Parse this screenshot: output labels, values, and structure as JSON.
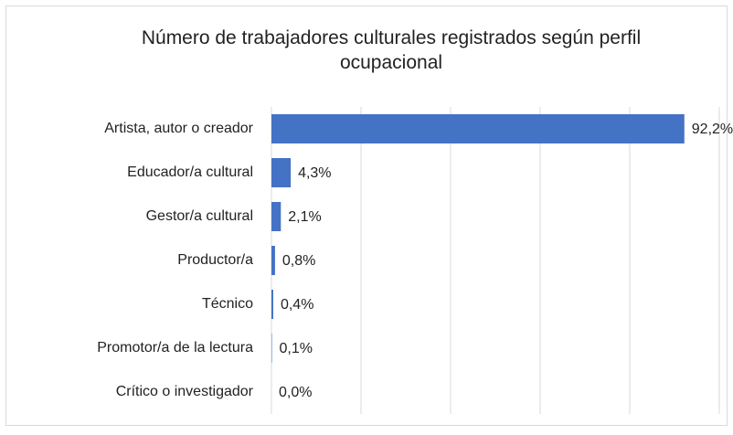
{
  "chart_data": {
    "type": "bar",
    "orientation": "horizontal",
    "title": "Número de trabajadores culturales registrados según perfil ocupacional",
    "categories": [
      "Artista, autor o creador",
      "Educador/a cultural",
      "Gestor/a cultural",
      "Productor/a",
      "Técnico",
      "Promotor/a de la lectura",
      "Crítico o investigador"
    ],
    "values": [
      92.2,
      4.3,
      2.1,
      0.8,
      0.4,
      0.1,
      0.0
    ],
    "value_labels": [
      "92,2%",
      "4,3%",
      "2,1%",
      "0,8%",
      "0,4%",
      "0,1%",
      "0,0%"
    ],
    "color": "#4472c4",
    "xlim": [
      0,
      100
    ],
    "xticks": [
      0,
      20,
      40,
      60,
      80,
      100
    ],
    "grid": true
  }
}
